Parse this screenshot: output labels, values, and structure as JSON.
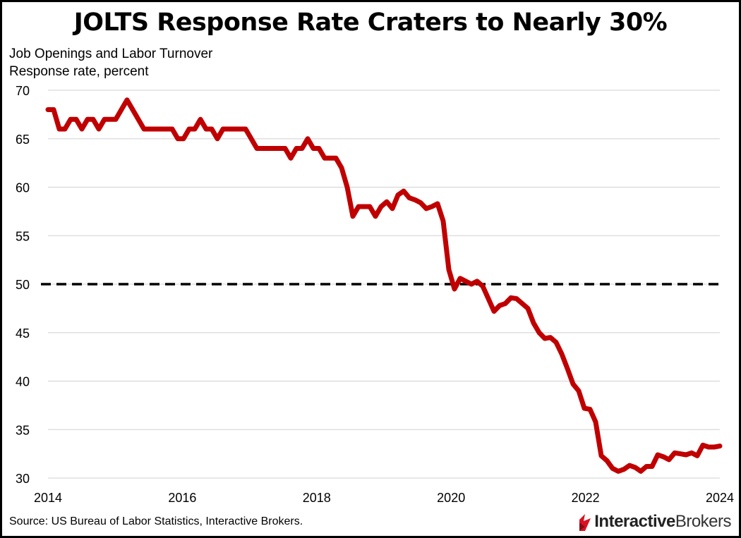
{
  "chart_data": {
    "type": "line",
    "title": "JOLTS Response Rate Craters to Nearly 30%",
    "subtitle": [
      "Job Openings and Labor Turnover",
      "Response rate, percent"
    ],
    "source": "Source: US Bureau of Labor Statistics, Interactive Brokers.",
    "xlim": [
      2014,
      2024
    ],
    "ylim": [
      30,
      70
    ],
    "x_ticks": [
      "2014",
      "2016",
      "2018",
      "2020",
      "2022",
      "2024"
    ],
    "y_ticks": [
      "30",
      "35",
      "40",
      "45",
      "50",
      "55",
      "60",
      "65",
      "70"
    ],
    "grid": "horizontal",
    "reference_line": {
      "value": 50,
      "style": "dashed",
      "color": "#000000"
    },
    "line_color": "#C00000",
    "series": [
      {
        "frequency": "monthly",
        "start": "2014-01",
        "values": [
          68,
          68,
          66,
          66,
          67,
          67,
          66,
          67,
          67,
          66,
          67,
          67,
          67,
          68,
          69,
          68,
          67,
          66,
          66,
          66,
          66,
          66,
          66,
          65,
          65,
          66,
          66,
          67,
          66,
          66,
          65,
          66,
          66,
          66,
          66,
          66,
          65,
          64,
          64,
          64,
          64,
          64,
          64,
          63,
          64,
          64,
          65,
          64,
          64,
          63,
          63,
          63,
          62,
          60,
          57,
          58,
          58,
          58,
          57,
          58,
          58.5,
          57.8,
          59.2,
          59.6,
          58.9,
          58.7,
          58.4,
          57.8,
          58,
          58.3,
          56.5,
          51.5,
          49.5,
          50.6,
          50.3,
          50,
          50.3,
          49.8,
          48.5,
          47.2,
          47.8,
          48,
          48.6,
          48.5,
          48,
          47.5,
          46,
          45,
          44.4,
          44.5,
          44,
          42.8,
          41.3,
          39.7,
          39,
          37.2,
          37.1,
          35.8,
          32.3,
          31.8,
          31,
          30.7,
          30.9,
          31.3,
          31.1,
          30.7,
          31.2,
          31.2,
          32.4,
          32.2,
          31.9,
          32.6,
          32.5,
          32.4,
          32.6,
          32.3,
          33.4,
          33.2,
          33.2,
          33.3
        ]
      }
    ]
  },
  "logo": {
    "text_bold": "Interactive",
    "text_regular": "Brokers",
    "color": "#D81222"
  }
}
